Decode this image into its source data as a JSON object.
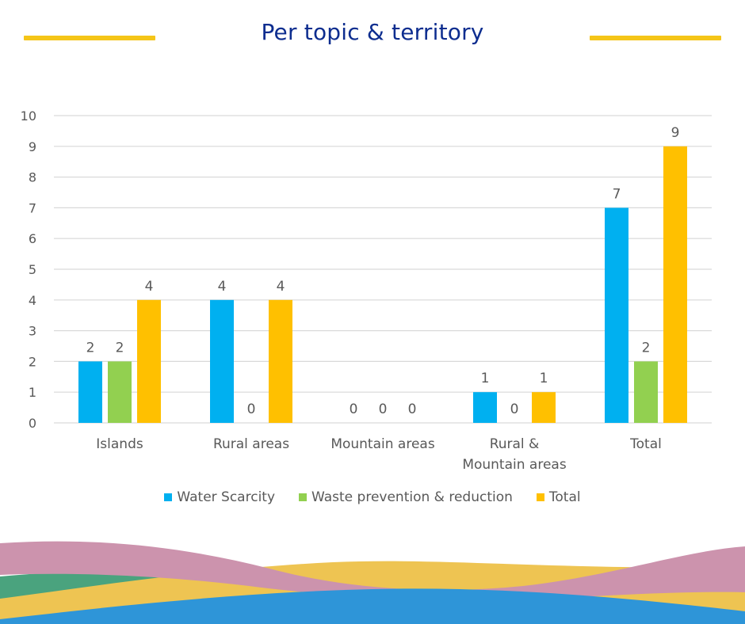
{
  "header": {
    "title": "Per topic & territory"
  },
  "colors": {
    "title": "#0D2D8F",
    "accent_line": "#F5C518",
    "water": "#00B0F0",
    "waste": "#92D050",
    "total": "#FFC000",
    "grid": "#D9D9D9",
    "text": "#595959"
  },
  "chart_data": {
    "type": "bar",
    "title": "Per topic & territory",
    "categories": [
      [
        "Islands"
      ],
      [
        "Rural areas"
      ],
      [
        "Mountain areas"
      ],
      [
        "Rural &",
        "Mountain areas"
      ],
      [
        "Total"
      ]
    ],
    "series": [
      {
        "name": "Water Scarcity",
        "color": "#00B0F0",
        "values": [
          2,
          4,
          null,
          1,
          7
        ],
        "labels": [
          "2",
          "4",
          "0",
          "1",
          "7"
        ]
      },
      {
        "name": "Waste prevention & reduction",
        "color": "#92D050",
        "values": [
          2,
          null,
          null,
          null,
          2
        ],
        "labels": [
          "2",
          "0",
          "0",
          "0",
          "2"
        ]
      },
      {
        "name": "Total",
        "color": "#FFC000",
        "values": [
          4,
          4,
          null,
          1,
          9
        ],
        "labels": [
          "4",
          "4",
          "0",
          "1",
          "9"
        ]
      }
    ],
    "ylim": [
      0,
      10
    ],
    "yticks": [
      "0",
      "1",
      "2",
      "3",
      "4",
      "5",
      "6",
      "7",
      "8",
      "9",
      "10"
    ],
    "grid": true,
    "legend": "bottom"
  },
  "legend": {
    "items": [
      {
        "label": "Water Scarcity",
        "color": "#00B0F0"
      },
      {
        "label": "Waste prevention & reduction",
        "color": "#92D050"
      },
      {
        "label": "Total",
        "color": "#FFC000"
      }
    ]
  }
}
